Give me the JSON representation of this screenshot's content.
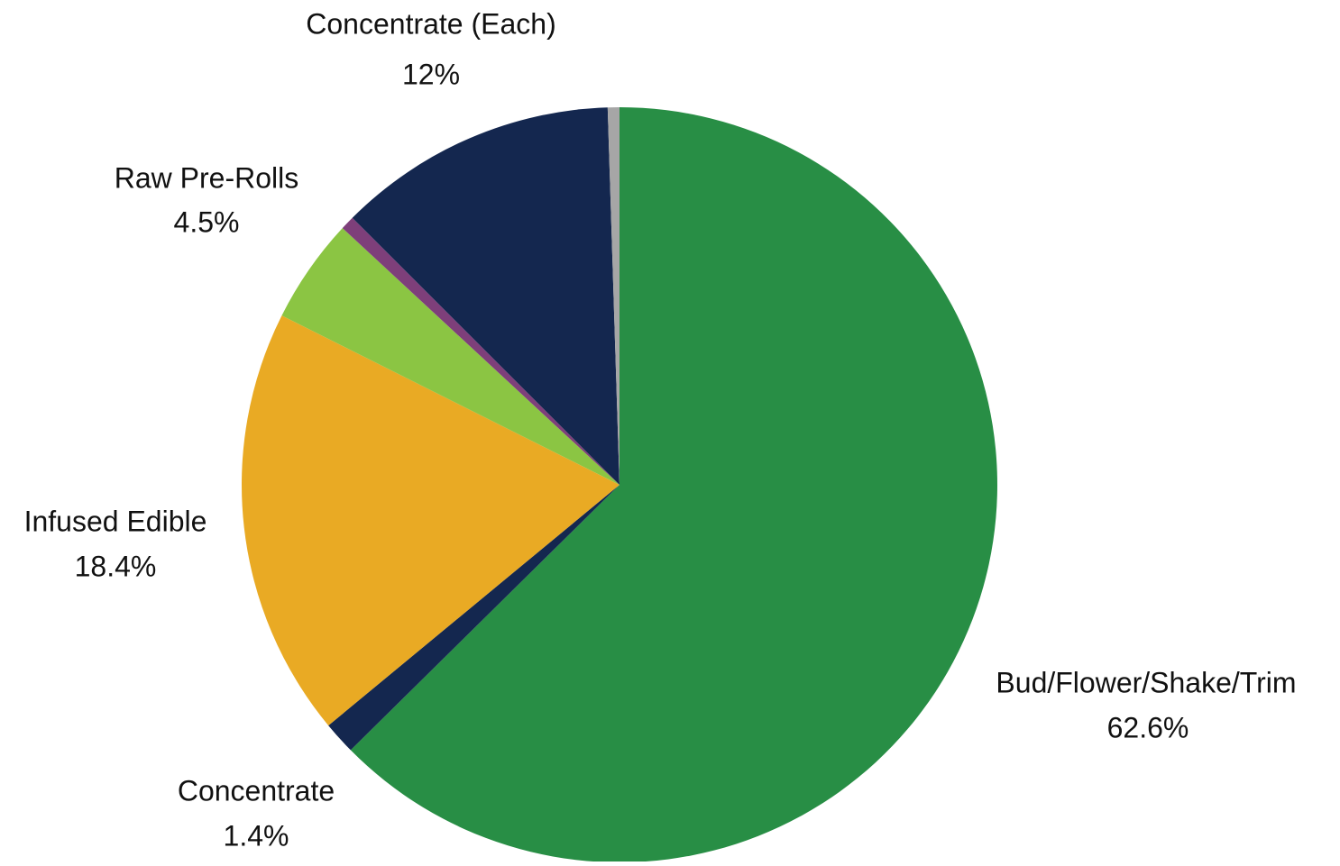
{
  "chart_data": {
    "type": "pie",
    "categories": [
      "Bud/Flower/Shake/Trim",
      "Concentrate",
      "Infused Edible",
      "Raw Pre-Rolls",
      null,
      "Concentrate (Each)",
      null
    ],
    "values": [
      62.6,
      1.4,
      18.4,
      4.5,
      0.6,
      12,
      0.5
    ],
    "value_labels": [
      "62.6%",
      "1.4%",
      "18.4%",
      "4.5%",
      null,
      "12%",
      null
    ],
    "colors": [
      "#288e45",
      "#14274f",
      "#e9aa24",
      "#8bc543",
      "#7e3f7a",
      "#14274f",
      "#a6a6a6"
    ]
  }
}
